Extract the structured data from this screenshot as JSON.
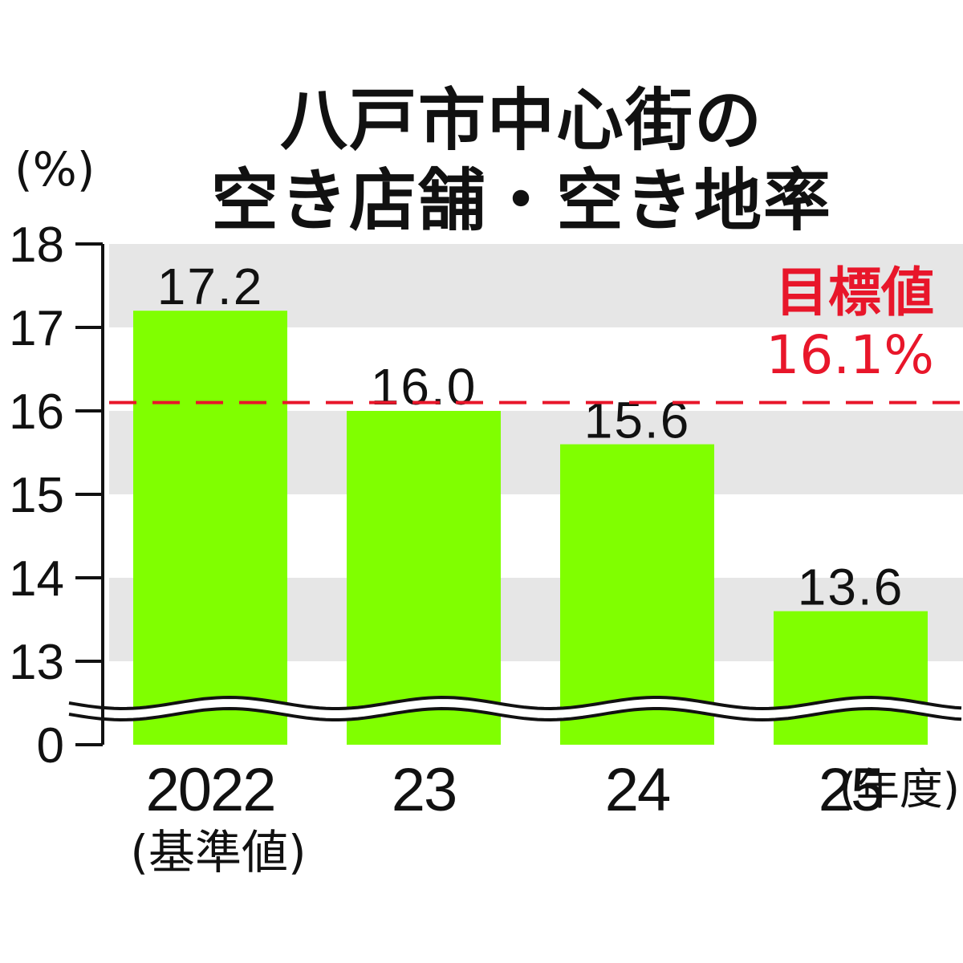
{
  "title_line1": "八戸市中心街の",
  "title_line2": "空き店舗・空き地率",
  "unit_label": "(%)",
  "target_label": "目標値",
  "target_value_label": "16.1%",
  "chart_data": {
    "type": "bar",
    "title": "八戸市中心街の空き店舗・空き地率",
    "ylabel": "(%)",
    "categories": [
      "2022",
      "23",
      "24",
      "25"
    ],
    "category_sublabels": [
      "(基準値)",
      "",
      "",
      ""
    ],
    "x_unit": "(年度)",
    "values": [
      17.2,
      16.0,
      15.6,
      13.6
    ],
    "value_labels": [
      "17.2",
      "16.0",
      "15.6",
      "13.6"
    ],
    "yticks": [
      "18",
      "17",
      "16",
      "15",
      "14",
      "13",
      "0"
    ],
    "ylim": [
      13,
      18
    ],
    "axis_break": "between 0 and 13",
    "target_line": 16.1,
    "bar_color": "#80ff00",
    "band_color": "#e6e6e6",
    "target_color": "#e8162a"
  }
}
